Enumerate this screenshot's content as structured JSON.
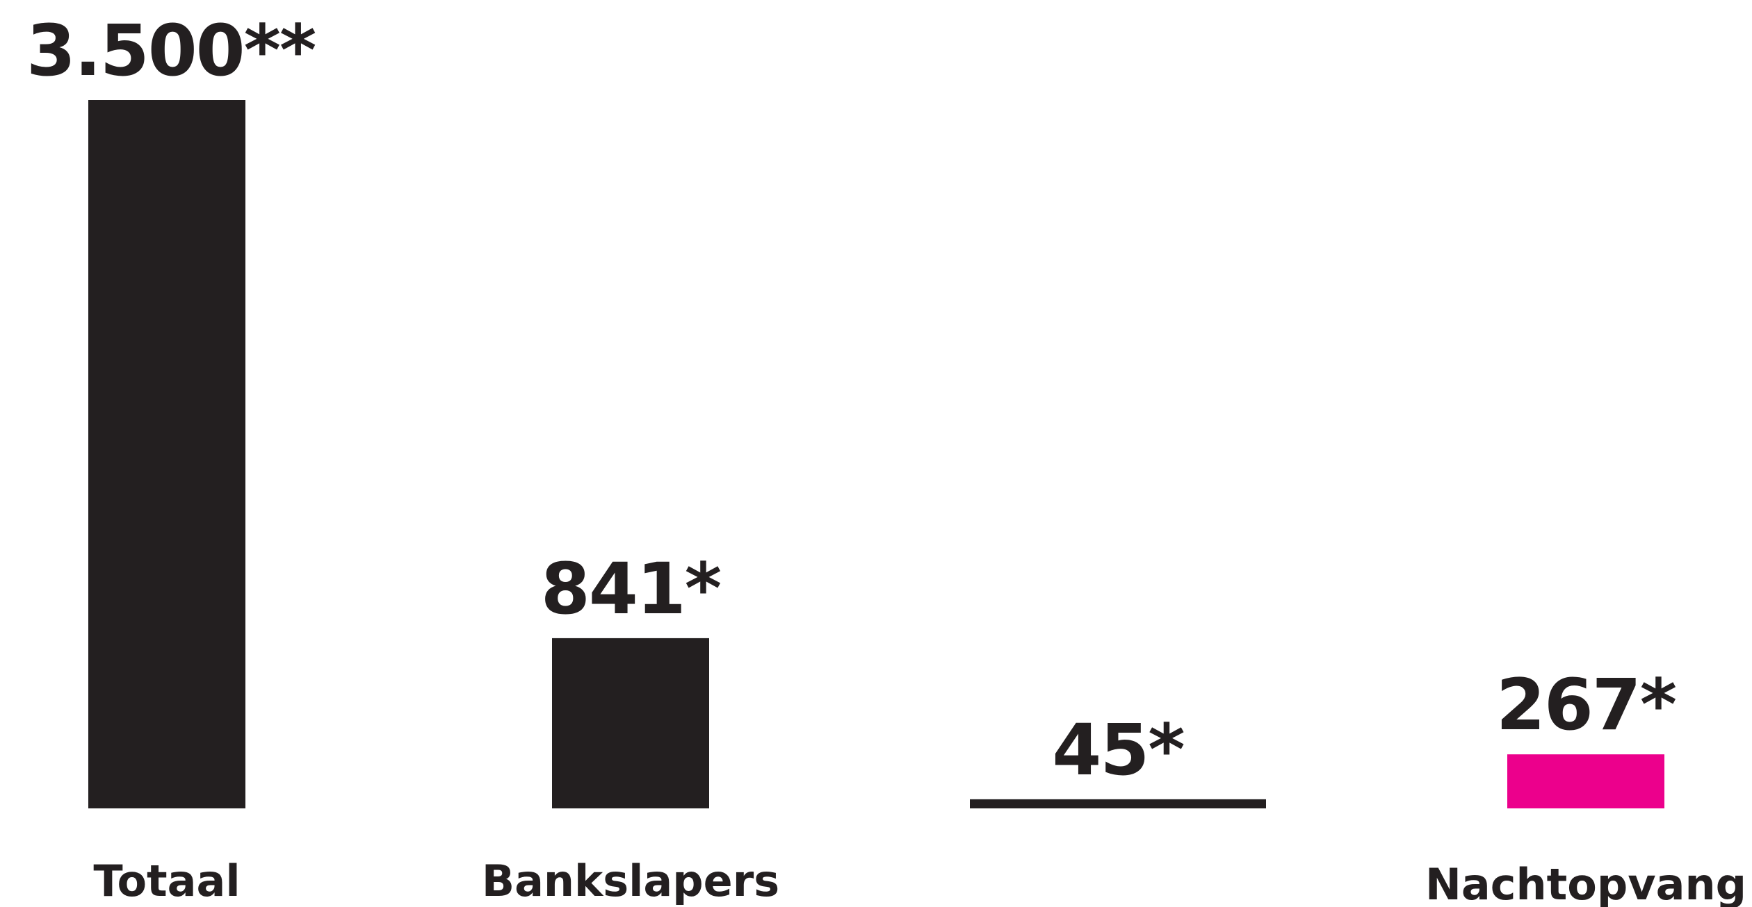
{
  "chart_data": {
    "type": "bar",
    "title": "",
    "xlabel": "",
    "ylabel": "",
    "categories": [
      "Totaal",
      "Bankslapers",
      "",
      "Nachtopvang"
    ],
    "values": [
      3500,
      841,
      45,
      267
    ],
    "value_labels": [
      "3.500**",
      "841*",
      "45*",
      "267*"
    ],
    "colors": [
      "#231f20",
      "#231f20",
      "#231f20",
      "#ec008c"
    ],
    "ylim": [
      0,
      3500
    ],
    "grid": false,
    "legend": "none"
  }
}
